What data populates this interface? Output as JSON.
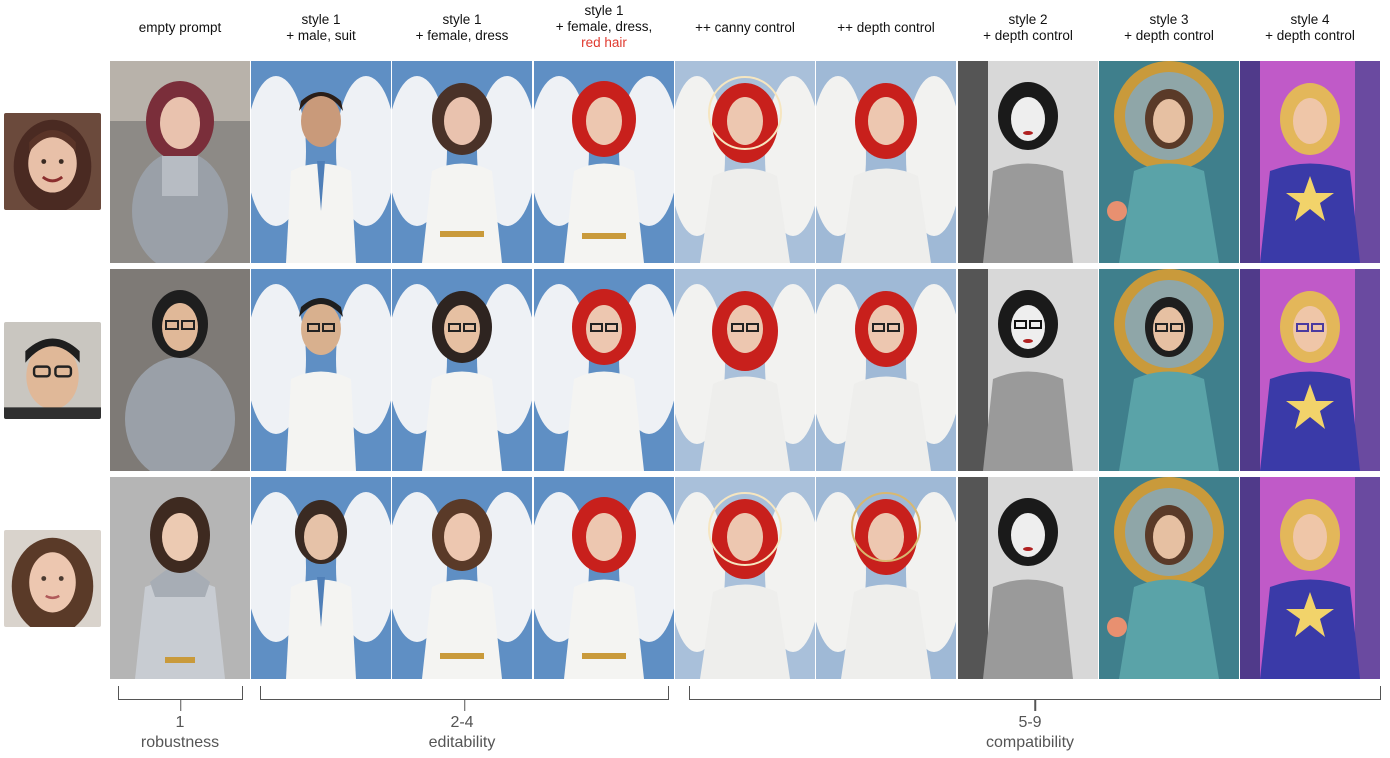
{
  "columns": [
    {
      "line1": "empty prompt",
      "line2": "",
      "extra": ""
    },
    {
      "line1": "style 1",
      "line2": "+ male, suit",
      "extra": ""
    },
    {
      "line1": "style 1",
      "line2": "+ female, dress",
      "extra": ""
    },
    {
      "line1": "style 1",
      "line2": "+ female, dress,",
      "extra": "red hair"
    },
    {
      "line1": "++ canny control",
      "line2": "",
      "extra": ""
    },
    {
      "line1": "++ depth control",
      "line2": "",
      "extra": ""
    },
    {
      "line1": "style 2",
      "line2": "+ depth control",
      "extra": ""
    },
    {
      "line1": "style 3",
      "line2": "+ depth control",
      "extra": ""
    },
    {
      "line1": "style 4",
      "line2": "+ depth control",
      "extra": ""
    }
  ],
  "groups": [
    {
      "number": "1",
      "label": "robustness"
    },
    {
      "number": "2-4",
      "label": "editability"
    },
    {
      "number": "5-9",
      "label": "compatibility"
    }
  ],
  "colors": {
    "angel_sky": "#5f8fc4",
    "wings": "#eef1f5",
    "red_hair": "#c8201c",
    "bw_bg": "#d8d8d8",
    "gold": "#c99a3b",
    "neon_bg": "#c05ac8",
    "armor": "#9aa0a8",
    "accent_text": "#e03a2f"
  }
}
